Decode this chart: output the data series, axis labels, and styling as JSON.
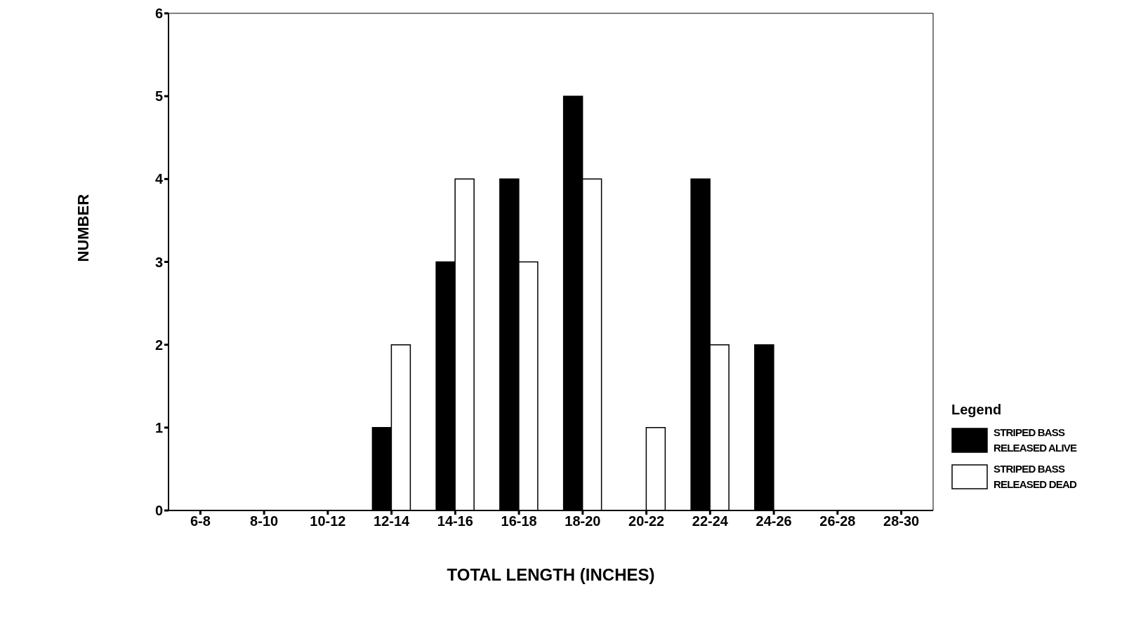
{
  "chart_data": {
    "type": "bar",
    "xlabel": "TOTAL LENGTH (INCHES)",
    "ylabel": "NUMBER",
    "legend_title": "Legend",
    "categories": [
      "6-8",
      "8-10",
      "10-12",
      "12-14",
      "14-16",
      "16-18",
      "18-20",
      "20-22",
      "22-24",
      "24-26",
      "26-28",
      "28-30"
    ],
    "series": [
      {
        "name": "STRIPED BASS RELEASED ALIVE",
        "color": "#000000",
        "values": [
          0,
          0,
          0,
          1,
          3,
          4,
          5,
          0,
          4,
          2,
          0,
          0
        ]
      },
      {
        "name": "STRIPED BASS RELEASED DEAD",
        "color": "#ffffff",
        "values": [
          0,
          0,
          0,
          2,
          4,
          3,
          4,
          1,
          2,
          0,
          0,
          0
        ]
      }
    ],
    "ylim": [
      0,
      6
    ],
    "yticks": [
      0,
      1,
      2,
      3,
      4,
      5,
      6
    ],
    "grid": false,
    "legend": "right"
  }
}
